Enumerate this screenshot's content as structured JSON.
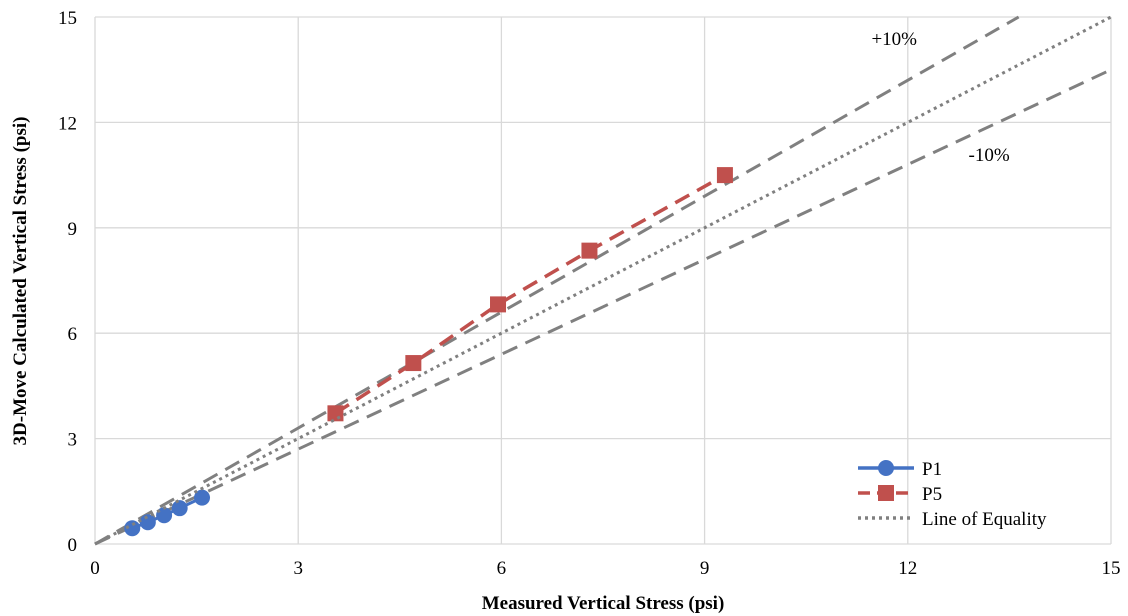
{
  "chart_data": {
    "type": "scatter",
    "title": "",
    "xlabel": "Measured Vertical Stress (psi)",
    "ylabel": "3D-Move Calculated Vertical Stress (psi)",
    "xlim": [
      0,
      15
    ],
    "ylim": [
      0,
      15
    ],
    "xticks": [
      0,
      3,
      6,
      9,
      12,
      15
    ],
    "yticks": [
      0,
      3,
      6,
      9,
      12,
      15
    ],
    "grid": true,
    "legend_position": "bottom-right",
    "series": [
      {
        "name": "P1",
        "color": "#4472C4",
        "marker": "circle",
        "line": "solid",
        "points": [
          [
            0.55,
            0.45
          ],
          [
            0.78,
            0.62
          ],
          [
            1.02,
            0.82
          ],
          [
            1.25,
            1.02
          ],
          [
            1.58,
            1.32
          ]
        ]
      },
      {
        "name": "P5",
        "color": "#C0504D",
        "marker": "square",
        "line": "dashed",
        "points": [
          [
            3.55,
            3.72
          ],
          [
            4.7,
            5.15
          ],
          [
            5.95,
            6.82
          ],
          [
            7.3,
            8.35
          ],
          [
            9.3,
            10.5
          ]
        ]
      },
      {
        "name": "Line of Equality",
        "color": "#808080",
        "line": "dotted",
        "points": [
          [
            0,
            0
          ],
          [
            15,
            15
          ]
        ]
      }
    ],
    "reference_lines": [
      {
        "label": "+10%",
        "slope": 1.1,
        "color": "#808080",
        "line": "dashed"
      },
      {
        "label": "-10%",
        "slope": 0.9,
        "color": "#808080",
        "line": "dashed"
      }
    ],
    "annotations": [
      {
        "text": "+10%",
        "x": 11.8,
        "y": 14.2
      },
      {
        "text": "-10%",
        "x": 13.2,
        "y": 10.9
      }
    ]
  }
}
